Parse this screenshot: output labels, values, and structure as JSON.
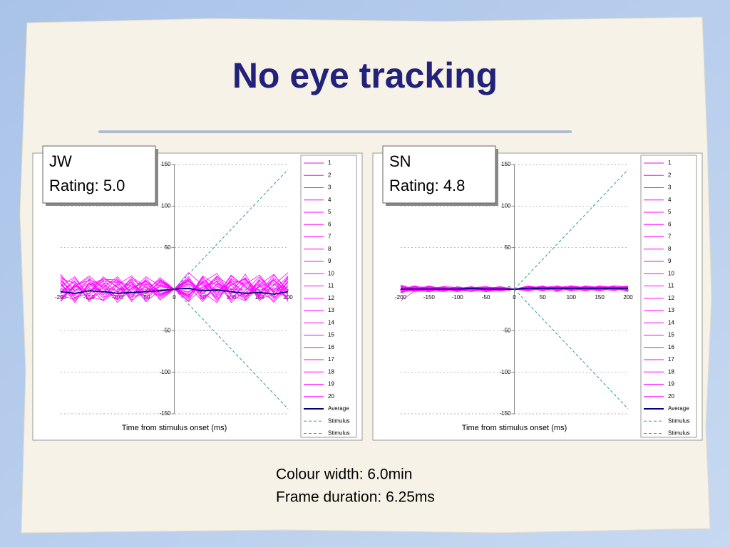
{
  "title": "No eye tracking",
  "caption": [
    "Colour width: 6.0min",
    "Frame duration: 6.25ms"
  ],
  "chart_data": [
    {
      "type": "line",
      "annotation": [
        "JW",
        "Rating: 5.0"
      ],
      "xlabel": "Time from stimulus onset (ms)",
      "x": [
        -200,
        -175,
        -150,
        -125,
        -100,
        -75,
        -50,
        -25,
        0,
        25,
        50,
        75,
        100,
        125,
        150,
        175,
        200
      ],
      "xlim": [
        -200,
        200
      ],
      "xticks": [
        -200,
        -150,
        -100,
        -50,
        0,
        50,
        100,
        150,
        200
      ],
      "ylim": [
        -150,
        150
      ],
      "yticks": [
        -150,
        -100,
        -50,
        0,
        50,
        100,
        150
      ],
      "grid": true,
      "legend": "right",
      "series": [
        {
          "name": "1",
          "color": "#ff00ff",
          "values": [
            5,
            -8,
            12,
            3,
            -10,
            6,
            -4,
            8,
            0,
            12,
            -6,
            15,
            4,
            -9,
            10,
            -3,
            7
          ]
        },
        {
          "name": "2",
          "color": "#ff00ff",
          "values": [
            -12,
            4,
            -6,
            15,
            2,
            -9,
            11,
            -5,
            0,
            -8,
            14,
            -3,
            9,
            -12,
            5,
            18,
            -4
          ]
        },
        {
          "name": "3",
          "color": "#ff00ff",
          "values": [
            18,
            -3,
            7,
            -11,
            9,
            4,
            -14,
            6,
            0,
            20,
            5,
            -10,
            16,
            3,
            -7,
            12,
            -15
          ]
        },
        {
          "name": "4",
          "color": "#ff00ff",
          "values": [
            -6,
            10,
            -15,
            5,
            -3,
            12,
            2,
            -9,
            0,
            -4,
            8,
            19,
            -6,
            11,
            -2,
            -14,
            9
          ]
        },
        {
          "name": "5",
          "color": "#ff00ff",
          "values": [
            8,
            -14,
            3,
            9,
            -12,
            -2,
            15,
            4,
            0,
            11,
            -13,
            6,
            -1,
            14,
            -9,
            5,
            20
          ]
        },
        {
          "name": "6",
          "color": "#ff00ff",
          "values": [
            -15,
            6,
            10,
            -4,
            13,
            -7,
            3,
            -11,
            0,
            -15,
            2,
            9,
            -12,
            6,
            17,
            -5,
            -8
          ]
        },
        {
          "name": "7",
          "color": "#ff00ff",
          "values": [
            3,
            15,
            -9,
            -13,
            5,
            16,
            -6,
            10,
            0,
            7,
            -4,
            -16,
            12,
            -8,
            3,
            10,
            -2
          ]
        },
        {
          "name": "8",
          "color": "#ff00ff",
          "values": [
            11,
            -5,
            -2,
            7,
            -16,
            1,
            9,
            -3,
            0,
            -10,
            16,
            4,
            -5,
            18,
            -11,
            -7,
            13
          ]
        },
        {
          "name": "9",
          "color": "#ff00ff",
          "values": [
            -9,
            2,
            14,
            -7,
            6,
            -13,
            -2,
            12,
            0,
            15,
            -9,
            -2,
            8,
            -4,
            6,
            -16,
            5
          ]
        },
        {
          "name": "10",
          "color": "#ff00ff",
          "values": [
            14,
            -11,
            5,
            11,
            -4,
            8,
            -15,
            -1,
            0,
            -6,
            3,
            12,
            -14,
            9,
            -3,
            8,
            -11
          ]
        },
        {
          "name": "11",
          "color": "#ff00ff",
          "values": [
            -3,
            9,
            -12,
            2,
            15,
            -5,
            7,
            -8,
            0,
            4,
            -15,
            7,
            1,
            -13,
            13,
            -2,
            16
          ]
        },
        {
          "name": "12",
          "color": "#ff00ff",
          "values": [
            7,
            -16,
            8,
            -5,
            -8,
            11,
            -10,
            5,
            0,
            -12,
            10,
            -7,
            17,
            2,
            -8,
            14,
            -6
          ]
        },
        {
          "name": "13",
          "color": "#ff00ff",
          "values": [
            -14,
            5,
            -3,
            13,
            3,
            -11,
            13,
            -6,
            0,
            9,
            -2,
            14,
            -9,
            -6,
            11,
            -10,
            3
          ]
        },
        {
          "name": "14",
          "color": "#ff00ff",
          "values": [
            16,
            -2,
            11,
            -9,
            -7,
            4,
            -3,
            14,
            0,
            -3,
            7,
            -12,
            5,
            13,
            -14,
            6,
            -13
          ]
        },
        {
          "name": "15",
          "color": "#ff00ff",
          "values": [
            -5,
            13,
            -8,
            6,
            10,
            -15,
            6,
            -2,
            0,
            13,
            -11,
            3,
            -3,
            -10,
            8,
            -12,
            10
          ]
        },
        {
          "name": "16",
          "color": "#ff00ff",
          "values": [
            10,
            -7,
            2,
            -14,
            -1,
            9,
            -12,
            9,
            0,
            -9,
            12,
            -5,
            10,
            7,
            -5,
            17,
            -1
          ]
        },
        {
          "name": "17",
          "color": "#ff00ff",
          "values": [
            -11,
            3,
            16,
            1,
            -13,
            2,
            10,
            -13,
            0,
            6,
            -6,
            10,
            -16,
            -2,
            15,
            -4,
            12
          ]
        },
        {
          "name": "18",
          "color": "#ff00ff",
          "values": [
            2,
            -10,
            -5,
            10,
            8,
            -9,
            -5,
            3,
            0,
            -14,
            15,
            -9,
            6,
            12,
            -12,
            2,
            -9
          ]
        },
        {
          "name": "19",
          "color": "#ff00ff",
          "values": [
            13,
            7,
            -13,
            -2,
            -5,
            14,
            4,
            -7,
            0,
            10,
            -1,
            16,
            -7,
            -14,
            4,
            -9,
            15
          ]
        },
        {
          "name": "20",
          "color": "#ff00ff",
          "values": [
            -8,
            -12,
            6,
            12,
            11,
            -4,
            -8,
            11,
            0,
            -7,
            9,
            -14,
            13,
            5,
            -6,
            11,
            -7
          ]
        },
        {
          "name": "Average",
          "color": "#000080",
          "values": [
            -3,
            -5,
            -2,
            -3,
            -5,
            -4,
            -3,
            -2,
            0,
            1,
            -2,
            -1,
            -3,
            -5,
            -4,
            -6,
            -3
          ]
        },
        {
          "name": "Stimulus",
          "color": "#339999",
          "dash": true,
          "values": [
            null,
            null,
            null,
            null,
            null,
            null,
            null,
            null,
            0,
            18,
            36,
            54,
            72,
            90,
            108,
            126,
            144
          ]
        },
        {
          "name": "Stimulus",
          "color": "#339999",
          "dash": true,
          "values": [
            null,
            null,
            null,
            null,
            null,
            null,
            null,
            null,
            0,
            -18,
            -36,
            -54,
            -72,
            -90,
            -108,
            -126,
            -144
          ]
        }
      ]
    },
    {
      "type": "line",
      "annotation": [
        "SN",
        "Rating: 4.8"
      ],
      "xlabel": "Time from stimulus onset (ms)",
      "x": [
        -200,
        -175,
        -150,
        -125,
        -100,
        -75,
        -50,
        -25,
        0,
        25,
        50,
        75,
        100,
        125,
        150,
        175,
        200
      ],
      "xlim": [
        -200,
        200
      ],
      "xticks": [
        -200,
        -150,
        -100,
        -50,
        0,
        50,
        100,
        150,
        200
      ],
      "ylim": [
        -150,
        150
      ],
      "yticks": [
        -150,
        -100,
        -50,
        0,
        50,
        100,
        150
      ],
      "grid": true,
      "legend": "right",
      "series": [
        {
          "name": "1",
          "color": "#ff00ff",
          "values": [
            -3,
            -2,
            1,
            2,
            -1,
            0,
            2,
            1,
            0,
            2,
            3,
            1,
            -1,
            2,
            3,
            1,
            2
          ]
        },
        {
          "name": "2",
          "color": "#ff00ff",
          "values": [
            2,
            1,
            -1,
            -3,
            1,
            2,
            -1,
            0,
            0,
            -2,
            1,
            3,
            2,
            -1,
            1,
            3,
            -2
          ]
        },
        {
          "name": "3",
          "color": "#ff00ff",
          "values": [
            -14,
            -2,
            3,
            1,
            -2,
            1,
            3,
            -2,
            0,
            1,
            -2,
            2,
            4,
            1,
            -1,
            2,
            1
          ]
        },
        {
          "name": "4",
          "color": "#ff00ff",
          "values": [
            1,
            3,
            2,
            -1,
            3,
            -2,
            1,
            2,
            0,
            3,
            2,
            -1,
            1,
            3,
            2,
            -1,
            3
          ]
        },
        {
          "name": "5",
          "color": "#ff00ff",
          "values": [
            4,
            -1,
            -2,
            2,
            0,
            3,
            -2,
            1,
            0,
            -1,
            3,
            2,
            -2,
            0,
            4,
            2,
            -1
          ]
        },
        {
          "name": "6",
          "color": "#ff00ff",
          "values": [
            -2,
            2,
            3,
            0,
            -3,
            1,
            2,
            -1,
            0,
            2,
            -1,
            1,
            3,
            2,
            -2,
            1,
            4
          ]
        },
        {
          "name": "7",
          "color": "#ff00ff",
          "values": [
            0,
            4,
            -1,
            3,
            2,
            -1,
            0,
            3,
            0,
            1,
            2,
            4,
            0,
            -1,
            2,
            3,
            1
          ]
        },
        {
          "name": "8",
          "color": "#ff00ff",
          "values": [
            3,
            -3,
            1,
            -2,
            1,
            2,
            -3,
            -1,
            0,
            -2,
            1,
            0,
            2,
            3,
            1,
            -2,
            2
          ]
        },
        {
          "name": "9",
          "color": "#ff00ff",
          "values": [
            -4,
            1,
            2,
            1,
            -1,
            -3,
            1,
            2,
            0,
            3,
            -1,
            2,
            1,
            -2,
            3,
            1,
            -3
          ]
        },
        {
          "name": "10",
          "color": "#ff00ff",
          "values": [
            1,
            -2,
            -3,
            3,
            2,
            1,
            -1,
            -2,
            0,
            1,
            4,
            -2,
            3,
            1,
            -1,
            4,
            2
          ]
        },
        {
          "name": "11",
          "color": "#ff00ff",
          "values": [
            5,
            0,
            1,
            -1,
            -2,
            2,
            3,
            1,
            0,
            -1,
            2,
            1,
            -1,
            4,
            2,
            0,
            1
          ]
        },
        {
          "name": "12",
          "color": "#ff00ff",
          "values": [
            -1,
            3,
            -2,
            2,
            1,
            -2,
            0,
            2,
            0,
            2,
            -2,
            3,
            2,
            0,
            -2,
            2,
            3
          ]
        },
        {
          "name": "13",
          "color": "#ff00ff",
          "values": [
            2,
            -1,
            4,
            0,
            -1,
            3,
            -2,
            -1,
            0,
            4,
            1,
            -1,
            1,
            2,
            3,
            -1,
            0
          ]
        },
        {
          "name": "14",
          "color": "#ff00ff",
          "values": [
            -5,
            2,
            0,
            -2,
            3,
            0,
            1,
            3,
            0,
            -1,
            3,
            2,
            -2,
            1,
            0,
            3,
            -1
          ]
        },
        {
          "name": "15",
          "color": "#ff00ff",
          "values": [
            3,
            1,
            -1,
            2,
            -3,
            1,
            2,
            0,
            0,
            2,
            0,
            -3,
            4,
            2,
            1,
            1,
            2
          ]
        },
        {
          "name": "16",
          "color": "#ff00ff",
          "values": [
            -2,
            -1,
            2,
            1,
            2,
            -1,
            -3,
            2,
            0,
            0,
            1,
            2,
            1,
            -1,
            3,
            2,
            -2
          ]
        },
        {
          "name": "17",
          "color": "#ff00ff",
          "values": [
            1,
            2,
            -3,
            -1,
            0,
            2,
            1,
            -2,
            0,
            3,
            -1,
            0,
            2,
            3,
            -1,
            0,
            1
          ]
        },
        {
          "name": "18",
          "color": "#ff00ff",
          "values": [
            0,
            -2,
            1,
            3,
            -2,
            -1,
            2,
            1,
            0,
            -2,
            2,
            1,
            -1,
            2,
            1,
            4,
            3
          ]
        },
        {
          "name": "19",
          "color": "#ff00ff",
          "values": [
            -3,
            3,
            2,
            -2,
            1,
            3,
            -1,
            0,
            0,
            1,
            3,
            -2,
            0,
            1,
            2,
            1,
            -1
          ]
        },
        {
          "name": "20",
          "color": "#ff00ff",
          "values": [
            4,
            0,
            -1,
            1,
            -1,
            0,
            3,
            -1,
            0,
            -1,
            0,
            3,
            1,
            -2,
            1,
            2,
            1
          ]
        },
        {
          "name": "Average",
          "color": "#000080",
          "values": [
            0,
            0,
            0,
            0,
            0,
            1,
            0,
            0,
            0,
            1,
            1,
            1,
            1,
            1,
            1,
            1,
            1
          ]
        },
        {
          "name": "Stimulus",
          "color": "#339999",
          "dash": true,
          "values": [
            null,
            null,
            null,
            null,
            null,
            null,
            null,
            null,
            0,
            18,
            36,
            54,
            72,
            90,
            108,
            126,
            144
          ]
        },
        {
          "name": "Stimulus",
          "color": "#339999",
          "dash": true,
          "values": [
            null,
            null,
            null,
            null,
            null,
            null,
            null,
            null,
            0,
            -18,
            -36,
            -54,
            -72,
            -90,
            -108,
            -126,
            -144
          ]
        }
      ]
    }
  ]
}
